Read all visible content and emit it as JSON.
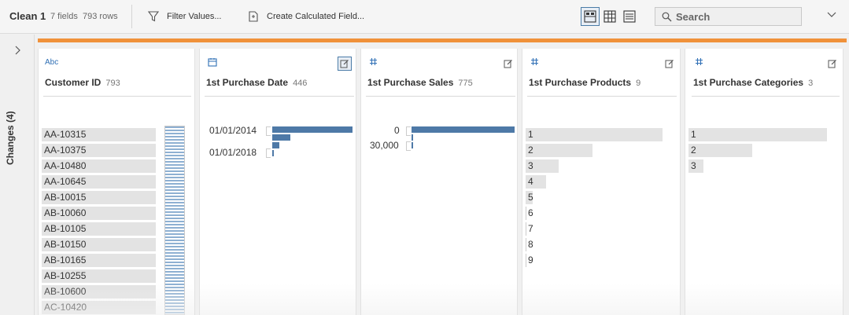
{
  "toolbar": {
    "title": "Clean 1",
    "fields": "7 fields",
    "rows": "793 rows",
    "filter_label": "Filter Values...",
    "calc_label": "Create Calculated Field...",
    "search_placeholder": "Search"
  },
  "rail": {
    "label": "Changes (4)"
  },
  "colors": {
    "accent": "#f0913a",
    "bar": "#4e79a7",
    "type_icon": "#2f6fb5"
  },
  "cards": {
    "customer_id": {
      "type": "Abc",
      "name": "Customer ID",
      "count": "793",
      "values": [
        "AA-10315",
        "AA-10375",
        "AA-10480",
        "AA-10645",
        "AB-10015",
        "AB-10060",
        "AB-10105",
        "AB-10150",
        "AB-10165",
        "AB-10255",
        "AB-10600",
        "AC-10420"
      ]
    },
    "purchase_date": {
      "name": "1st Purchase Date",
      "count": "446",
      "labels": [
        "01/01/2014",
        "01/01/2018"
      ],
      "bars": [
        1.0,
        0.23,
        0.09,
        0.02
      ]
    },
    "purchase_sales": {
      "name": "1st Purchase Sales",
      "count": "775",
      "labels": [
        "0",
        "30,000"
      ],
      "bars": [
        1.0,
        0.01,
        0.01
      ]
    },
    "purchase_products": {
      "name": "1st Purchase Products",
      "count": "9",
      "values": [
        "1",
        "2",
        "3",
        "4",
        "5",
        "6",
        "7",
        "8",
        "9"
      ],
      "bars": [
        1.0,
        0.49,
        0.24,
        0.15,
        0.05,
        0.02,
        0.01,
        0.01,
        0.01
      ]
    },
    "purchase_categories": {
      "name": "1st Purchase Categories",
      "count": "3",
      "values": [
        "1",
        "2",
        "3"
      ],
      "bars": [
        1.0,
        0.46,
        0.11
      ]
    }
  }
}
